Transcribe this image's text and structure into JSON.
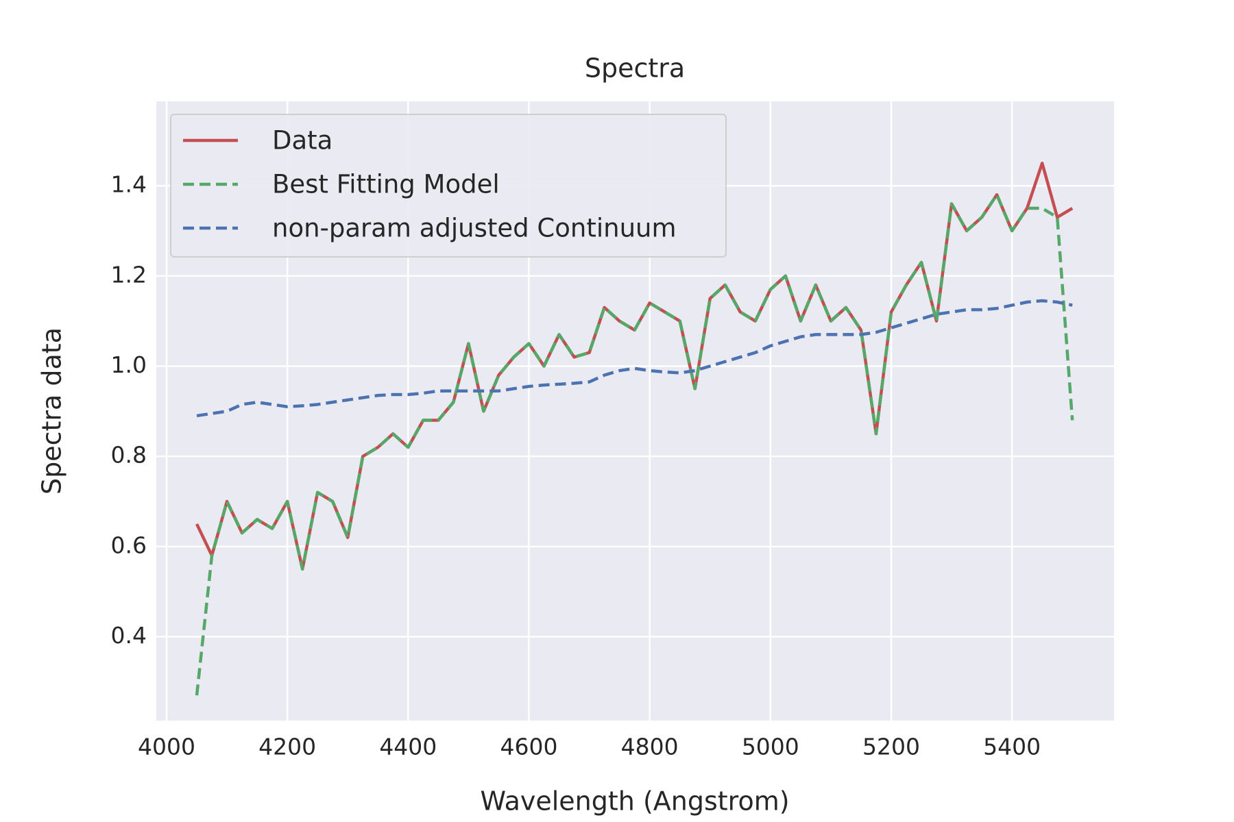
{
  "chart_data": {
    "type": "line",
    "title": "Spectra",
    "x_label": "Wavelength (Angstrom)",
    "y_label": "Spectra data",
    "x": [
      4050,
      4075,
      4100,
      4125,
      4150,
      4175,
      4200,
      4225,
      4250,
      4275,
      4300,
      4325,
      4350,
      4375,
      4400,
      4425,
      4450,
      4475,
      4500,
      4525,
      4550,
      4575,
      4600,
      4625,
      4650,
      4675,
      4700,
      4725,
      4750,
      4775,
      4800,
      4825,
      4850,
      4875,
      4900,
      4925,
      4950,
      4975,
      5000,
      5025,
      5050,
      5075,
      5100,
      5125,
      5150,
      5175,
      5200,
      5225,
      5250,
      5275,
      5300,
      5325,
      5350,
      5375,
      5400,
      5425,
      5450,
      5475,
      5500
    ],
    "series": [
      {
        "name": "Data",
        "color": "#c44e52",
        "dash": false,
        "values": [
          0.65,
          0.58,
          0.7,
          0.63,
          0.66,
          0.64,
          0.7,
          0.55,
          0.72,
          0.7,
          0.62,
          0.8,
          0.82,
          0.85,
          0.82,
          0.88,
          0.88,
          0.92,
          1.05,
          0.9,
          0.98,
          1.02,
          1.05,
          1.0,
          1.07,
          1.02,
          1.03,
          1.13,
          1.1,
          1.08,
          1.14,
          1.12,
          1.1,
          0.95,
          1.15,
          1.18,
          1.12,
          1.1,
          1.17,
          1.2,
          1.1,
          1.18,
          1.1,
          1.13,
          1.08,
          0.85,
          1.12,
          1.18,
          1.23,
          1.1,
          1.36,
          1.3,
          1.33,
          1.38,
          1.3,
          1.35,
          1.45,
          1.33,
          1.35
        ]
      },
      {
        "name": "Best Fitting Model",
        "color": "#55a868",
        "dash": true,
        "values": [
          0.27,
          0.58,
          0.7,
          0.63,
          0.66,
          0.64,
          0.7,
          0.55,
          0.72,
          0.7,
          0.62,
          0.8,
          0.82,
          0.85,
          0.82,
          0.88,
          0.88,
          0.92,
          1.05,
          0.9,
          0.98,
          1.02,
          1.05,
          1.0,
          1.07,
          1.02,
          1.03,
          1.13,
          1.1,
          1.08,
          1.14,
          1.12,
          1.1,
          0.95,
          1.15,
          1.18,
          1.12,
          1.1,
          1.17,
          1.2,
          1.1,
          1.18,
          1.1,
          1.13,
          1.08,
          0.85,
          1.12,
          1.18,
          1.23,
          1.1,
          1.36,
          1.3,
          1.33,
          1.38,
          1.3,
          1.35,
          1.35,
          1.33,
          0.88
        ]
      },
      {
        "name": "non-param adjusted Continuum",
        "color": "#4c72b0",
        "dash": true,
        "values": [
          0.89,
          0.895,
          0.9,
          0.915,
          0.92,
          0.915,
          0.91,
          0.912,
          0.915,
          0.92,
          0.925,
          0.93,
          0.935,
          0.937,
          0.937,
          0.94,
          0.945,
          0.945,
          0.945,
          0.945,
          0.945,
          0.95,
          0.955,
          0.958,
          0.96,
          0.962,
          0.965,
          0.98,
          0.99,
          0.995,
          0.99,
          0.987,
          0.985,
          0.99,
          1.0,
          1.01,
          1.02,
          1.03,
          1.045,
          1.055,
          1.065,
          1.07,
          1.07,
          1.07,
          1.07,
          1.075,
          1.085,
          1.095,
          1.105,
          1.115,
          1.12,
          1.125,
          1.125,
          1.128,
          1.135,
          1.142,
          1.145,
          1.142,
          1.135
        ]
      }
    ],
    "xlim": [
      3983,
      5569
    ],
    "ylim": [
      0.214,
      1.587
    ],
    "xticks": [
      4000,
      4200,
      4400,
      4600,
      4800,
      5000,
      5200,
      5400
    ],
    "yticks": [
      0.4,
      0.6,
      0.8,
      {
        "value": 1.0,
        "label": "1.0"
      },
      1.2,
      1.4
    ],
    "grid": true,
    "legend": "upper left"
  }
}
